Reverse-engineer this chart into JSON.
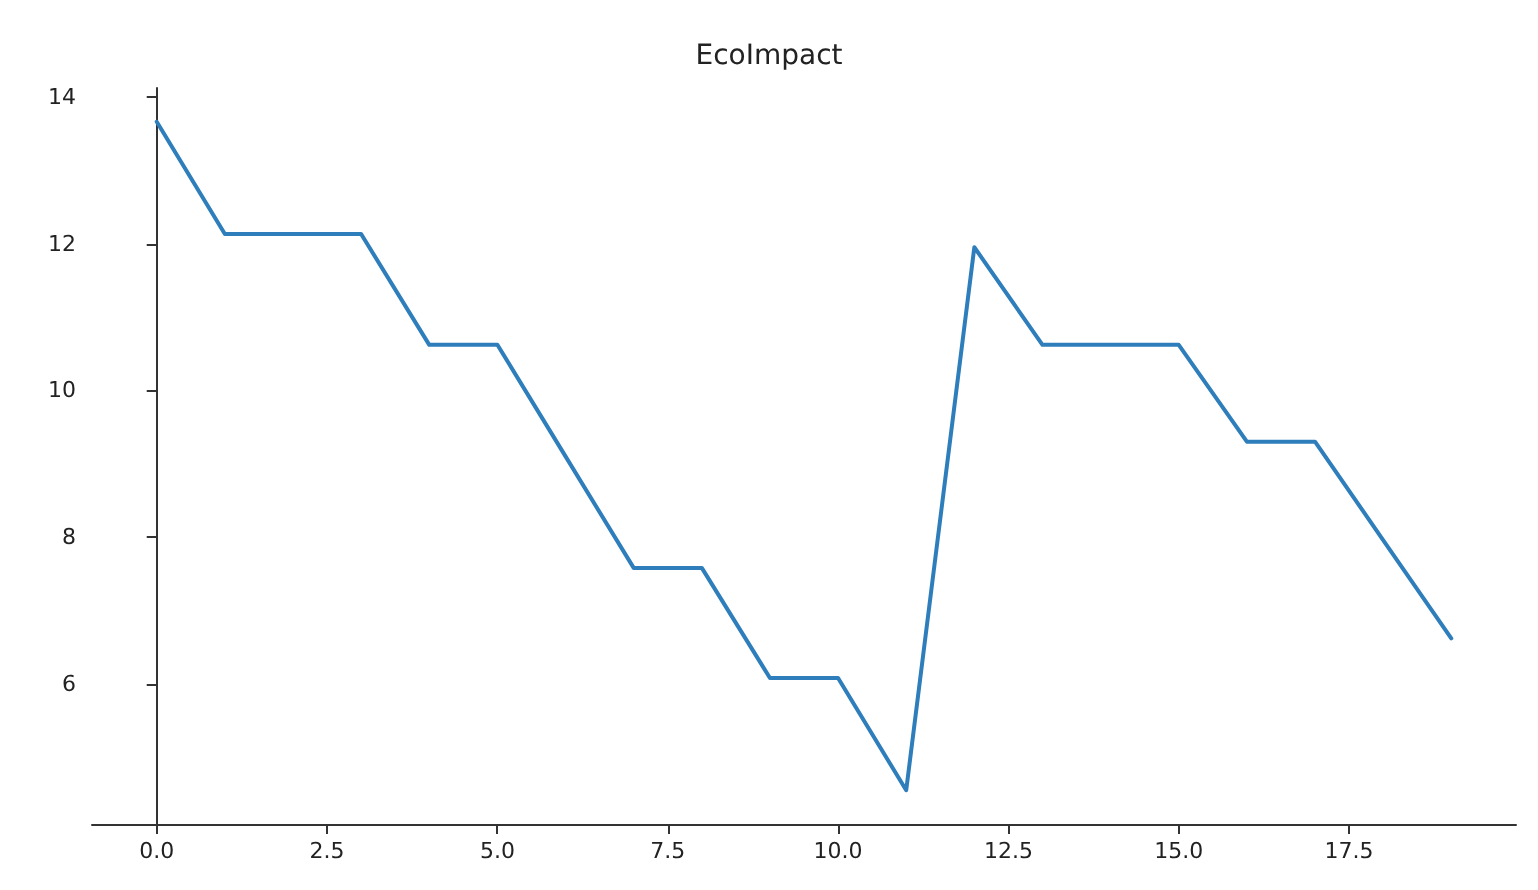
{
  "chart_data": {
    "type": "line",
    "title": "EcoImpact",
    "x": [
      0,
      1,
      2,
      3,
      4,
      5,
      6,
      7,
      8,
      9,
      10,
      11,
      12,
      13,
      14,
      15,
      16,
      17,
      18,
      19
    ],
    "series": [
      {
        "color": "#2e7ebc",
        "values": [
          13.66,
          12.13,
          12.13,
          12.13,
          10.62,
          10.62,
          9.1,
          7.58,
          7.58,
          6.08,
          6.08,
          4.55,
          11.95,
          10.62,
          10.62,
          10.62,
          9.3,
          9.3,
          7.96,
          6.62
        ]
      }
    ],
    "xlim": [
      -0.95,
      19.95
    ],
    "xticks": [
      {
        "value": 0,
        "label": "0.0"
      },
      2.5,
      {
        "value": 5,
        "label": "5.0"
      },
      7.5,
      {
        "value": 10,
        "label": "10.0"
      },
      12.5,
      {
        "value": 15,
        "label": "15.0"
      },
      17.5
    ],
    "ylim": [
      4.09,
      14.12
    ],
    "yticks": [
      6,
      8,
      10,
      12,
      14
    ],
    "marker": "none",
    "line_style": "solid"
  }
}
